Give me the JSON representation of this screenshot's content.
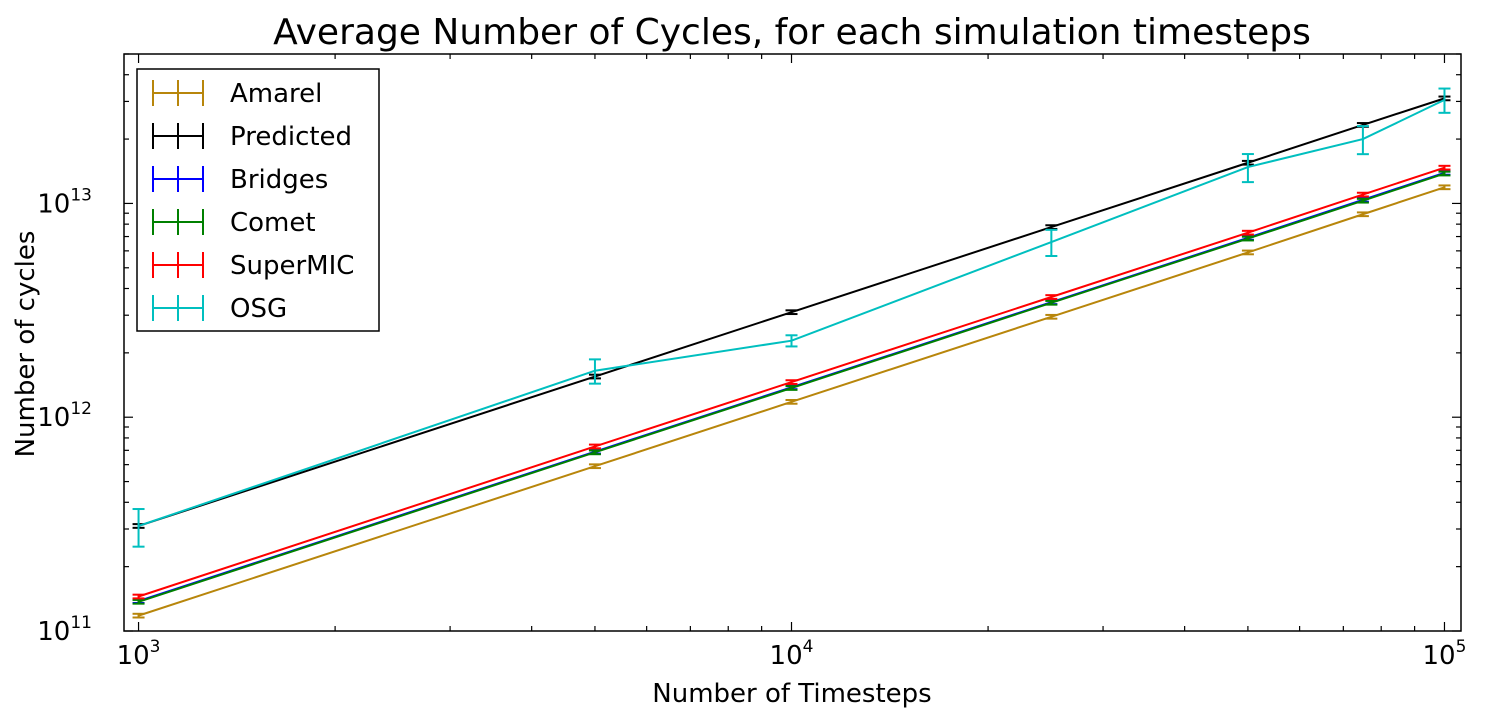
{
  "chart_data": {
    "type": "line",
    "title": "Average Number of Cycles, for each simulation timesteps",
    "xlabel": "Number of Timesteps",
    "ylabel": "Number of cycles",
    "xscale": "log",
    "yscale": "log",
    "xlim": [
      950,
      106000
    ],
    "ylim": [
      100000000000.0,
      50000000000000.0
    ],
    "x_ticks": [
      {
        "value": 1000,
        "base": "10",
        "exp": "3"
      },
      {
        "value": 10000,
        "base": "10",
        "exp": "4"
      },
      {
        "value": 100000,
        "base": "10",
        "exp": "5"
      }
    ],
    "y_ticks": [
      {
        "value": 100000000000.0,
        "base": "10",
        "exp": "11"
      },
      {
        "value": 1000000000000.0,
        "base": "10",
        "exp": "12"
      },
      {
        "value": 10000000000000.0,
        "base": "10",
        "exp": "13"
      }
    ],
    "grid": false,
    "legend_position": "top-left",
    "error_bars": true,
    "series": [
      {
        "name": "Amarel",
        "color": "#b8860b",
        "x": [
          1000,
          5000,
          10000,
          25000,
          50000,
          75000,
          100000
        ],
        "y": [
          118000000000.0,
          590000000000.0,
          1180000000000.0,
          2950000000000.0,
          5900000000000.0,
          8900000000000.0,
          11900000000000.0
        ],
        "err": [
          0.02,
          0.02,
          0.02,
          0.02,
          0.02,
          0.02,
          0.02
        ]
      },
      {
        "name": "Predicted",
        "color": "#000000",
        "x": [
          1000,
          5000,
          10000,
          25000,
          50000,
          75000,
          100000
        ],
        "y": [
          310000000000.0,
          1550000000000.0,
          3100000000000.0,
          7750000000000.0,
          15500000000000.0,
          23300000000000.0,
          31000000000000.0
        ],
        "err": [
          0.02,
          0.02,
          0.02,
          0.02,
          0.02,
          0.02,
          0.02
        ]
      },
      {
        "name": "Bridges",
        "color": "#0000ff",
        "x": [
          1000,
          5000,
          10000,
          25000,
          50000,
          75000,
          100000
        ],
        "y": [
          138000000000.0,
          690000000000.0,
          1380000000000.0,
          3450000000000.0,
          6900000000000.0,
          10400000000000.0,
          13900000000000.0
        ],
        "err": [
          0.02,
          0.02,
          0.02,
          0.02,
          0.02,
          0.02,
          0.02
        ]
      },
      {
        "name": "Comet",
        "color": "#008000",
        "x": [
          1000,
          5000,
          10000,
          25000,
          50000,
          75000,
          100000
        ],
        "y": [
          137000000000.0,
          685000000000.0,
          1370000000000.0,
          3430000000000.0,
          6850000000000.0,
          10300000000000.0,
          13800000000000.0
        ],
        "err": [
          0.02,
          0.02,
          0.02,
          0.02,
          0.02,
          0.02,
          0.02
        ]
      },
      {
        "name": "SuperMIC",
        "color": "#ff0000",
        "x": [
          1000,
          5000,
          10000,
          25000,
          50000,
          75000,
          100000
        ],
        "y": [
          145000000000.0,
          730000000000.0,
          1460000000000.0,
          3650000000000.0,
          7300000000000.0,
          11000000000000.0,
          14700000000000.0
        ],
        "err": [
          0.02,
          0.02,
          0.02,
          0.02,
          0.02,
          0.02,
          0.02
        ]
      },
      {
        "name": "OSG",
        "color": "#00bfbf",
        "x": [
          1000,
          5000,
          10000,
          25000,
          50000,
          75000,
          100000
        ],
        "y": [
          310000000000.0,
          1650000000000.0,
          2280000000000.0,
          6600000000000.0,
          14800000000000.0,
          20000000000000.0,
          30500000000000.0
        ],
        "err": [
          0.2,
          0.13,
          0.06,
          0.14,
          0.15,
          0.15,
          0.13
        ]
      }
    ]
  }
}
